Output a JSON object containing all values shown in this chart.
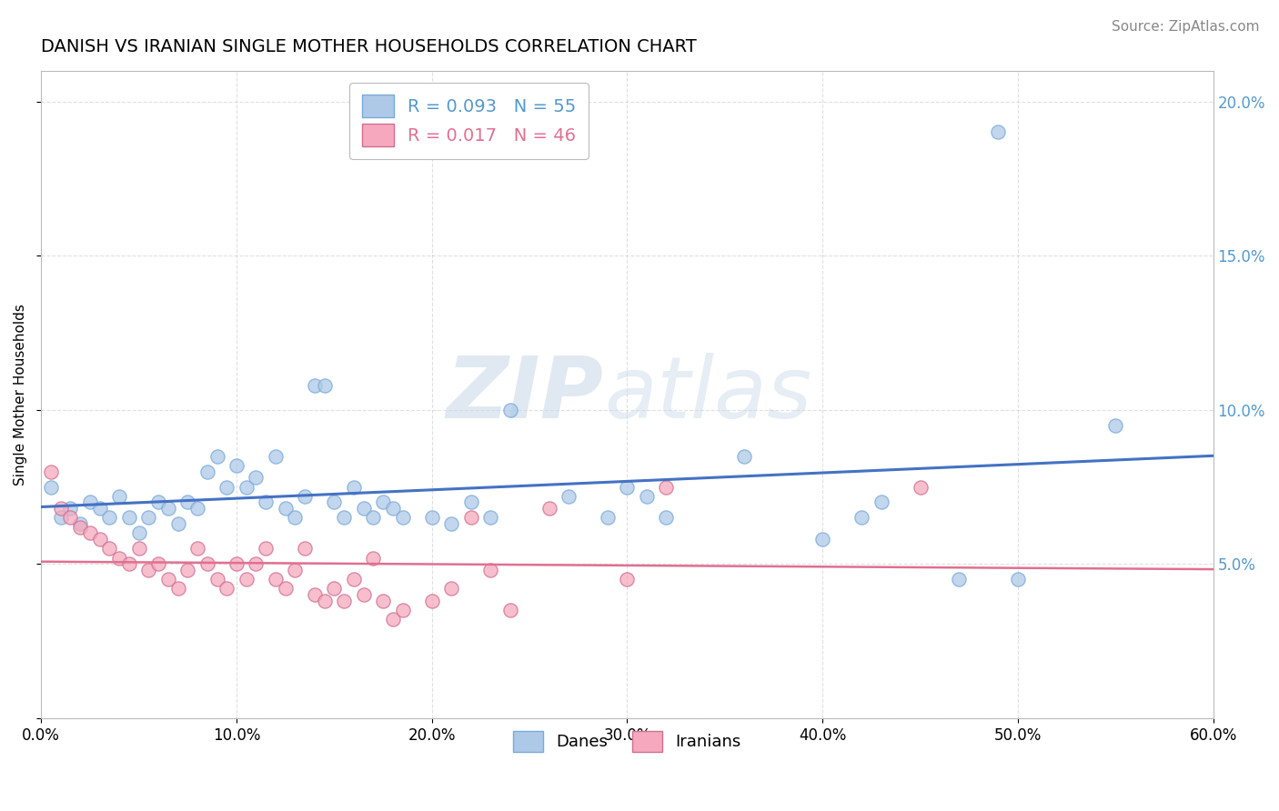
{
  "title": "DANISH VS IRANIAN SINGLE MOTHER HOUSEHOLDS CORRELATION CHART",
  "source": "Source: ZipAtlas.com",
  "xlabel": "",
  "ylabel": "Single Mother Households",
  "xlim": [
    0.0,
    0.6
  ],
  "ylim": [
    0.0,
    0.21
  ],
  "xticks": [
    0.0,
    0.1,
    0.2,
    0.3,
    0.4,
    0.5,
    0.6
  ],
  "xtick_labels": [
    "0.0%",
    "10.0%",
    "20.0%",
    "30.0%",
    "40.0%",
    "50.0%",
    "60.0%"
  ],
  "yticks": [
    0.0,
    0.05,
    0.1,
    0.15,
    0.2
  ],
  "ytick_labels_left": [
    "",
    "",
    "",
    "",
    ""
  ],
  "ytick_labels_right": [
    "",
    "5.0%",
    "10.0%",
    "15.0%",
    "20.0%"
  ],
  "legend_entries": [
    {
      "label": "Danes",
      "R": "0.093",
      "N": "55",
      "color": "#aec9e8"
    },
    {
      "label": "Iranians",
      "R": "0.017",
      "N": "46",
      "color": "#f5a8be"
    }
  ],
  "line_danes_color": "#4472c4",
  "line_iranians_color": "#e07090",
  "watermark_zip": "ZIP",
  "watermark_atlas": "atlas",
  "danes_scatter": [
    [
      0.005,
      0.075
    ],
    [
      0.01,
      0.065
    ],
    [
      0.015,
      0.068
    ],
    [
      0.02,
      0.063
    ],
    [
      0.025,
      0.07
    ],
    [
      0.03,
      0.068
    ],
    [
      0.035,
      0.065
    ],
    [
      0.04,
      0.072
    ],
    [
      0.045,
      0.065
    ],
    [
      0.05,
      0.06
    ],
    [
      0.055,
      0.065
    ],
    [
      0.06,
      0.07
    ],
    [
      0.065,
      0.068
    ],
    [
      0.07,
      0.063
    ],
    [
      0.075,
      0.07
    ],
    [
      0.08,
      0.068
    ],
    [
      0.085,
      0.08
    ],
    [
      0.09,
      0.085
    ],
    [
      0.095,
      0.075
    ],
    [
      0.1,
      0.082
    ],
    [
      0.105,
      0.075
    ],
    [
      0.11,
      0.078
    ],
    [
      0.115,
      0.07
    ],
    [
      0.12,
      0.085
    ],
    [
      0.125,
      0.068
    ],
    [
      0.13,
      0.065
    ],
    [
      0.135,
      0.072
    ],
    [
      0.14,
      0.108
    ],
    [
      0.145,
      0.108
    ],
    [
      0.15,
      0.07
    ],
    [
      0.155,
      0.065
    ],
    [
      0.16,
      0.075
    ],
    [
      0.165,
      0.068
    ],
    [
      0.17,
      0.065
    ],
    [
      0.175,
      0.07
    ],
    [
      0.18,
      0.068
    ],
    [
      0.185,
      0.065
    ],
    [
      0.2,
      0.065
    ],
    [
      0.21,
      0.063
    ],
    [
      0.22,
      0.07
    ],
    [
      0.23,
      0.065
    ],
    [
      0.24,
      0.1
    ],
    [
      0.27,
      0.072
    ],
    [
      0.29,
      0.065
    ],
    [
      0.3,
      0.075
    ],
    [
      0.31,
      0.072
    ],
    [
      0.32,
      0.065
    ],
    [
      0.36,
      0.085
    ],
    [
      0.4,
      0.058
    ],
    [
      0.42,
      0.065
    ],
    [
      0.43,
      0.07
    ],
    [
      0.47,
      0.045
    ],
    [
      0.49,
      0.19
    ],
    [
      0.5,
      0.045
    ],
    [
      0.55,
      0.095
    ]
  ],
  "iranians_scatter": [
    [
      0.005,
      0.08
    ],
    [
      0.01,
      0.068
    ],
    [
      0.015,
      0.065
    ],
    [
      0.02,
      0.062
    ],
    [
      0.025,
      0.06
    ],
    [
      0.03,
      0.058
    ],
    [
      0.035,
      0.055
    ],
    [
      0.04,
      0.052
    ],
    [
      0.045,
      0.05
    ],
    [
      0.05,
      0.055
    ],
    [
      0.055,
      0.048
    ],
    [
      0.06,
      0.05
    ],
    [
      0.065,
      0.045
    ],
    [
      0.07,
      0.042
    ],
    [
      0.075,
      0.048
    ],
    [
      0.08,
      0.055
    ],
    [
      0.085,
      0.05
    ],
    [
      0.09,
      0.045
    ],
    [
      0.095,
      0.042
    ],
    [
      0.1,
      0.05
    ],
    [
      0.105,
      0.045
    ],
    [
      0.11,
      0.05
    ],
    [
      0.115,
      0.055
    ],
    [
      0.12,
      0.045
    ],
    [
      0.125,
      0.042
    ],
    [
      0.13,
      0.048
    ],
    [
      0.135,
      0.055
    ],
    [
      0.14,
      0.04
    ],
    [
      0.145,
      0.038
    ],
    [
      0.15,
      0.042
    ],
    [
      0.155,
      0.038
    ],
    [
      0.16,
      0.045
    ],
    [
      0.165,
      0.04
    ],
    [
      0.17,
      0.052
    ],
    [
      0.175,
      0.038
    ],
    [
      0.18,
      0.032
    ],
    [
      0.185,
      0.035
    ],
    [
      0.2,
      0.038
    ],
    [
      0.21,
      0.042
    ],
    [
      0.22,
      0.065
    ],
    [
      0.23,
      0.048
    ],
    [
      0.24,
      0.035
    ],
    [
      0.26,
      0.068
    ],
    [
      0.3,
      0.045
    ],
    [
      0.32,
      0.075
    ],
    [
      0.45,
      0.075
    ]
  ],
  "title_fontsize": 14,
  "label_fontsize": 11,
  "tick_fontsize": 12,
  "source_fontsize": 11,
  "scatter_size": 120,
  "background_color": "#ffffff",
  "grid_color": "#cccccc"
}
